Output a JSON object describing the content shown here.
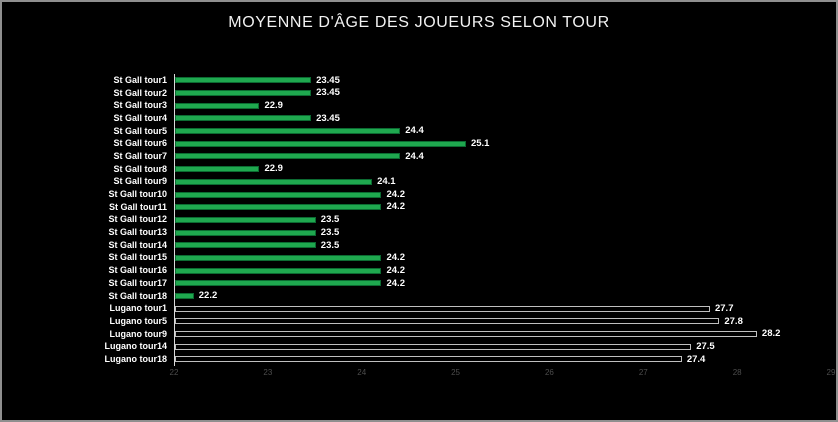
{
  "title": "MOYENNE D'ÂGE DES JOUEURS SELON TOUR",
  "chart_data": {
    "type": "bar",
    "orientation": "horizontal",
    "title": "MOYENNE D'ÂGE DES JOUEURS SELON TOUR",
    "categories": [
      "St Gall tour1",
      "St Gall tour2",
      "St Gall tour3",
      "St Gall tour4",
      "St Gall tour5",
      "St Gall tour6",
      "St Gall tour7",
      "St Gall tour8",
      "St Gall tour9",
      "St Gall tour10",
      "St Gall tour11",
      "St Gall tour12",
      "St Gall tour13",
      "St Gall tour14",
      "St Gall tour15",
      "St Gall tour16",
      "St Gall tour17",
      "St Gall tour18",
      "Lugano tour1",
      "Lugano tour5",
      "Lugano tour9",
      "Lugano tour14",
      "Lugano tour18"
    ],
    "values": [
      23.45,
      23.45,
      22.9,
      23.45,
      24.4,
      25.1,
      24.4,
      22.9,
      24.1,
      24.2,
      24.2,
      23.5,
      23.5,
      23.5,
      24.2,
      24.2,
      24.2,
      22.2,
      27.7,
      27.8,
      28.2,
      27.5,
      27.4
    ],
    "value_labels": [
      "23.45",
      "23.45",
      "22.9",
      "23.45",
      "24.4",
      "25.1",
      "24.4",
      "22.9",
      "24.1",
      "24.2",
      "24.2",
      "23.5",
      "23.5",
      "23.5",
      "24.2",
      "24.2",
      "24.2",
      "22.2",
      "27.7",
      "27.8",
      "28.2",
      "27.5",
      "27.4"
    ],
    "groups": [
      "st_gall",
      "st_gall",
      "st_gall",
      "st_gall",
      "st_gall",
      "st_gall",
      "st_gall",
      "st_gall",
      "st_gall",
      "st_gall",
      "st_gall",
      "st_gall",
      "st_gall",
      "st_gall",
      "st_gall",
      "st_gall",
      "st_gall",
      "st_gall",
      "lugano",
      "lugano",
      "lugano",
      "lugano",
      "lugano"
    ],
    "xlim": [
      22,
      29
    ],
    "x_ticks": [
      "22",
      "23",
      "24",
      "25",
      "26",
      "27",
      "28",
      "29"
    ],
    "grid": "off",
    "legend": "none",
    "colors": {
      "background": "#000000",
      "st_gall_fill": "#1fa84f",
      "st_gall_border": "#0c6b32",
      "lugano_fill": "#000000",
      "lugano_border": "#bfbfbf",
      "axis_line": "#d9d9d9",
      "tick_label": "#4d4d4d",
      "value_label": "#ffffff",
      "category_label": "#ffffff",
      "title_color": "#f2f2f2"
    }
  }
}
